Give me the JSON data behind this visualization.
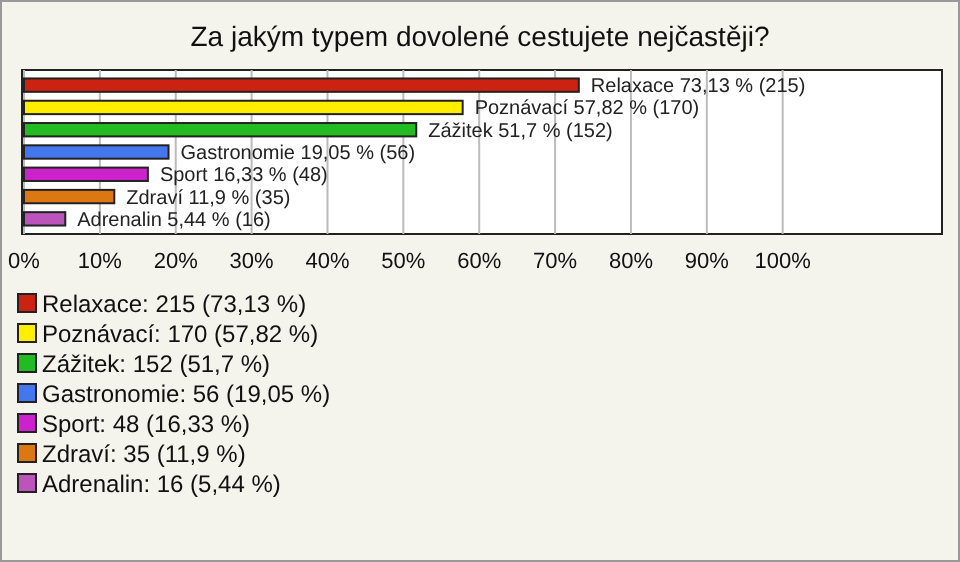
{
  "chart_data": {
    "type": "bar",
    "orientation": "horizontal",
    "title": "Za jakým typem dovolené cestujete nejčastěji?",
    "categories": [
      null,
      null,
      null,
      null,
      null,
      null,
      null
    ],
    "series": [
      {
        "name": "Relaxace: 215 (73,13 %)",
        "color": "#cc2211",
        "values": [
          73.13,
          null,
          null,
          null,
          null,
          null,
          null
        ],
        "value_labels": [
          "Relaxace 73,13 % (215)",
          null,
          null,
          null,
          null,
          null,
          null
        ]
      },
      {
        "name": "Poznávací: 170 (57,82 %)",
        "color": "#ffee00",
        "values": [
          null,
          57.82,
          null,
          null,
          null,
          null,
          null
        ],
        "value_labels": [
          null,
          "Poznávací 57,82 % (170)",
          null,
          null,
          null,
          null,
          null
        ]
      },
      {
        "name": "Zážitek: 152 (51,7 %)",
        "color": "#22bb22",
        "values": [
          null,
          null,
          51.7,
          null,
          null,
          null,
          null
        ],
        "value_labels": [
          null,
          null,
          "Zážitek 51,7 % (152)",
          null,
          null,
          null,
          null
        ]
      },
      {
        "name": "Gastronomie: 56 (19,05 %)",
        "color": "#4477ee",
        "values": [
          null,
          null,
          null,
          19.05,
          null,
          null,
          null
        ],
        "value_labels": [
          null,
          null,
          null,
          "Gastronomie 19,05 % (56)",
          null,
          null,
          null
        ]
      },
      {
        "name": "Sport: 48 (16,33 %)",
        "color": "#cc22cc",
        "values": [
          null,
          null,
          null,
          null,
          16.33,
          null,
          null
        ],
        "value_labels": [
          null,
          null,
          null,
          null,
          "Sport 16,33 % (48)",
          null,
          null
        ]
      },
      {
        "name": "Zdraví: 35 (11,9 %)",
        "color": "#dd7711",
        "values": [
          null,
          null,
          null,
          null,
          null,
          11.9,
          null
        ],
        "value_labels": [
          null,
          null,
          null,
          null,
          null,
          "Zdraví 11,9 % (35)",
          null
        ]
      },
      {
        "name": "Adrenalin: 16 (5,44 %)",
        "color": "#bb55bb",
        "values": [
          null,
          null,
          null,
          null,
          null,
          null,
          5.44
        ],
        "value_labels": [
          null,
          null,
          null,
          null,
          null,
          null,
          "Adrenalin 5,44 % (16)"
        ]
      }
    ],
    "xlim": [
      0,
      121
    ],
    "xticks": [
      {
        "value": 0,
        "label": "0%"
      },
      {
        "value": 10,
        "label": "10%"
      },
      {
        "value": 20,
        "label": "20%"
      },
      {
        "value": 30,
        "label": "30%"
      },
      {
        "value": 40,
        "label": "40%"
      },
      {
        "value": 50,
        "label": "50%"
      },
      {
        "value": 60,
        "label": "60%"
      },
      {
        "value": 70,
        "label": "70%"
      },
      {
        "value": 80,
        "label": "80%"
      },
      {
        "value": 90,
        "label": "90%"
      },
      {
        "value": 100,
        "label": "100%"
      }
    ],
    "grid": "x",
    "legend": "bottom"
  }
}
